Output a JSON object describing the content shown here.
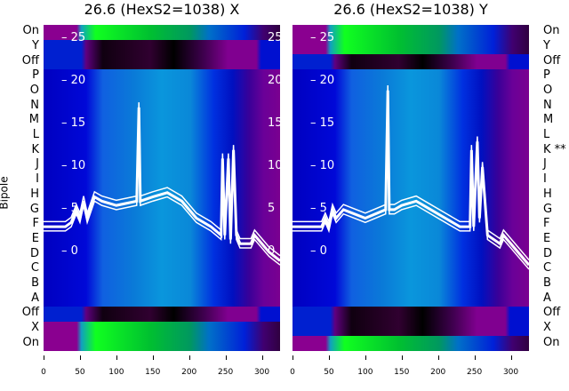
{
  "chart_data": [
    {
      "type": "heatmap",
      "title": "26.6 (HexS2=1038) X",
      "ylabel": "Bipole",
      "rows": [
        "On",
        "Y",
        "Off",
        "P",
        "O",
        "N",
        "M",
        "L",
        "K",
        "J",
        "I",
        "H",
        "G",
        "F",
        "E",
        "D",
        "C",
        "B",
        "A",
        "Off",
        "X",
        "On"
      ],
      "row_kinds": [
        "green",
        "off",
        "off",
        "blue",
        "blue",
        "blue",
        "blue",
        "blue",
        "blue",
        "blue",
        "blue",
        "blue",
        "blue",
        "blue",
        "blue",
        "blue",
        "blue",
        "blue",
        "blue",
        "off",
        "green",
        "green"
      ],
      "xlim": [
        0,
        325
      ],
      "xticks": [
        0,
        50,
        100,
        150,
        200,
        250,
        300
      ],
      "inner_ylim": [
        -11.6,
        26.7
      ],
      "inner_yticks": [
        0,
        5,
        10,
        15,
        20,
        25
      ],
      "line": [
        [
          0,
          3
        ],
        [
          30,
          3
        ],
        [
          38,
          3.5
        ],
        [
          45,
          5
        ],
        [
          50,
          4
        ],
        [
          55,
          6
        ],
        [
          60,
          4
        ],
        [
          70,
          6.5
        ],
        [
          80,
          6
        ],
        [
          100,
          5.5
        ],
        [
          128,
          6
        ],
        [
          131,
          17
        ],
        [
          133,
          6
        ],
        [
          150,
          6.5
        ],
        [
          170,
          7
        ],
        [
          190,
          6
        ],
        [
          210,
          4
        ],
        [
          230,
          3
        ],
        [
          244,
          2
        ],
        [
          246,
          11
        ],
        [
          249,
          2
        ],
        [
          254,
          11
        ],
        [
          257,
          1.5
        ],
        [
          261,
          12
        ],
        [
          265,
          2
        ],
        [
          270,
          1
        ],
        [
          285,
          1
        ],
        [
          290,
          2
        ],
        [
          300,
          1
        ],
        [
          310,
          0
        ],
        [
          325,
          -1
        ]
      ]
    },
    {
      "type": "heatmap",
      "title": "26.6 (HexS2=1038) Y",
      "rows": [
        "On",
        "Y",
        "Off",
        "P",
        "O",
        "N",
        "M",
        "L",
        "K **",
        "J",
        "I",
        "H",
        "G",
        "F",
        "E",
        "D",
        "C",
        "B",
        "A",
        "Off",
        "X",
        "On"
      ],
      "row_kinds": [
        "green",
        "green",
        "off",
        "blue",
        "blue",
        "blue",
        "blue",
        "blue",
        "blue",
        "blue",
        "blue",
        "blue",
        "blue",
        "blue",
        "blue",
        "blue",
        "blue",
        "blue",
        "blue",
        "off",
        "off",
        "green"
      ],
      "xlim": [
        0,
        325
      ],
      "xticks": [
        0,
        50,
        100,
        150,
        200,
        250,
        300
      ],
      "inner_ylim": [
        -11.6,
        26.7
      ],
      "inner_yticks": [
        0,
        5,
        10,
        15,
        20,
        25
      ],
      "line": [
        [
          0,
          3
        ],
        [
          40,
          3
        ],
        [
          45,
          4
        ],
        [
          50,
          3
        ],
        [
          55,
          5
        ],
        [
          60,
          4
        ],
        [
          70,
          5
        ],
        [
          100,
          4
        ],
        [
          128,
          5
        ],
        [
          131,
          19
        ],
        [
          133,
          5
        ],
        [
          140,
          5
        ],
        [
          150,
          5.5
        ],
        [
          170,
          6
        ],
        [
          190,
          5
        ],
        [
          210,
          4
        ],
        [
          230,
          3
        ],
        [
          244,
          3
        ],
        [
          246,
          12
        ],
        [
          249,
          3
        ],
        [
          254,
          13
        ],
        [
          257,
          4
        ],
        [
          261,
          10
        ],
        [
          268,
          2
        ],
        [
          285,
          1
        ],
        [
          290,
          2
        ],
        [
          300,
          1
        ],
        [
          325,
          -1.5
        ]
      ]
    }
  ]
}
